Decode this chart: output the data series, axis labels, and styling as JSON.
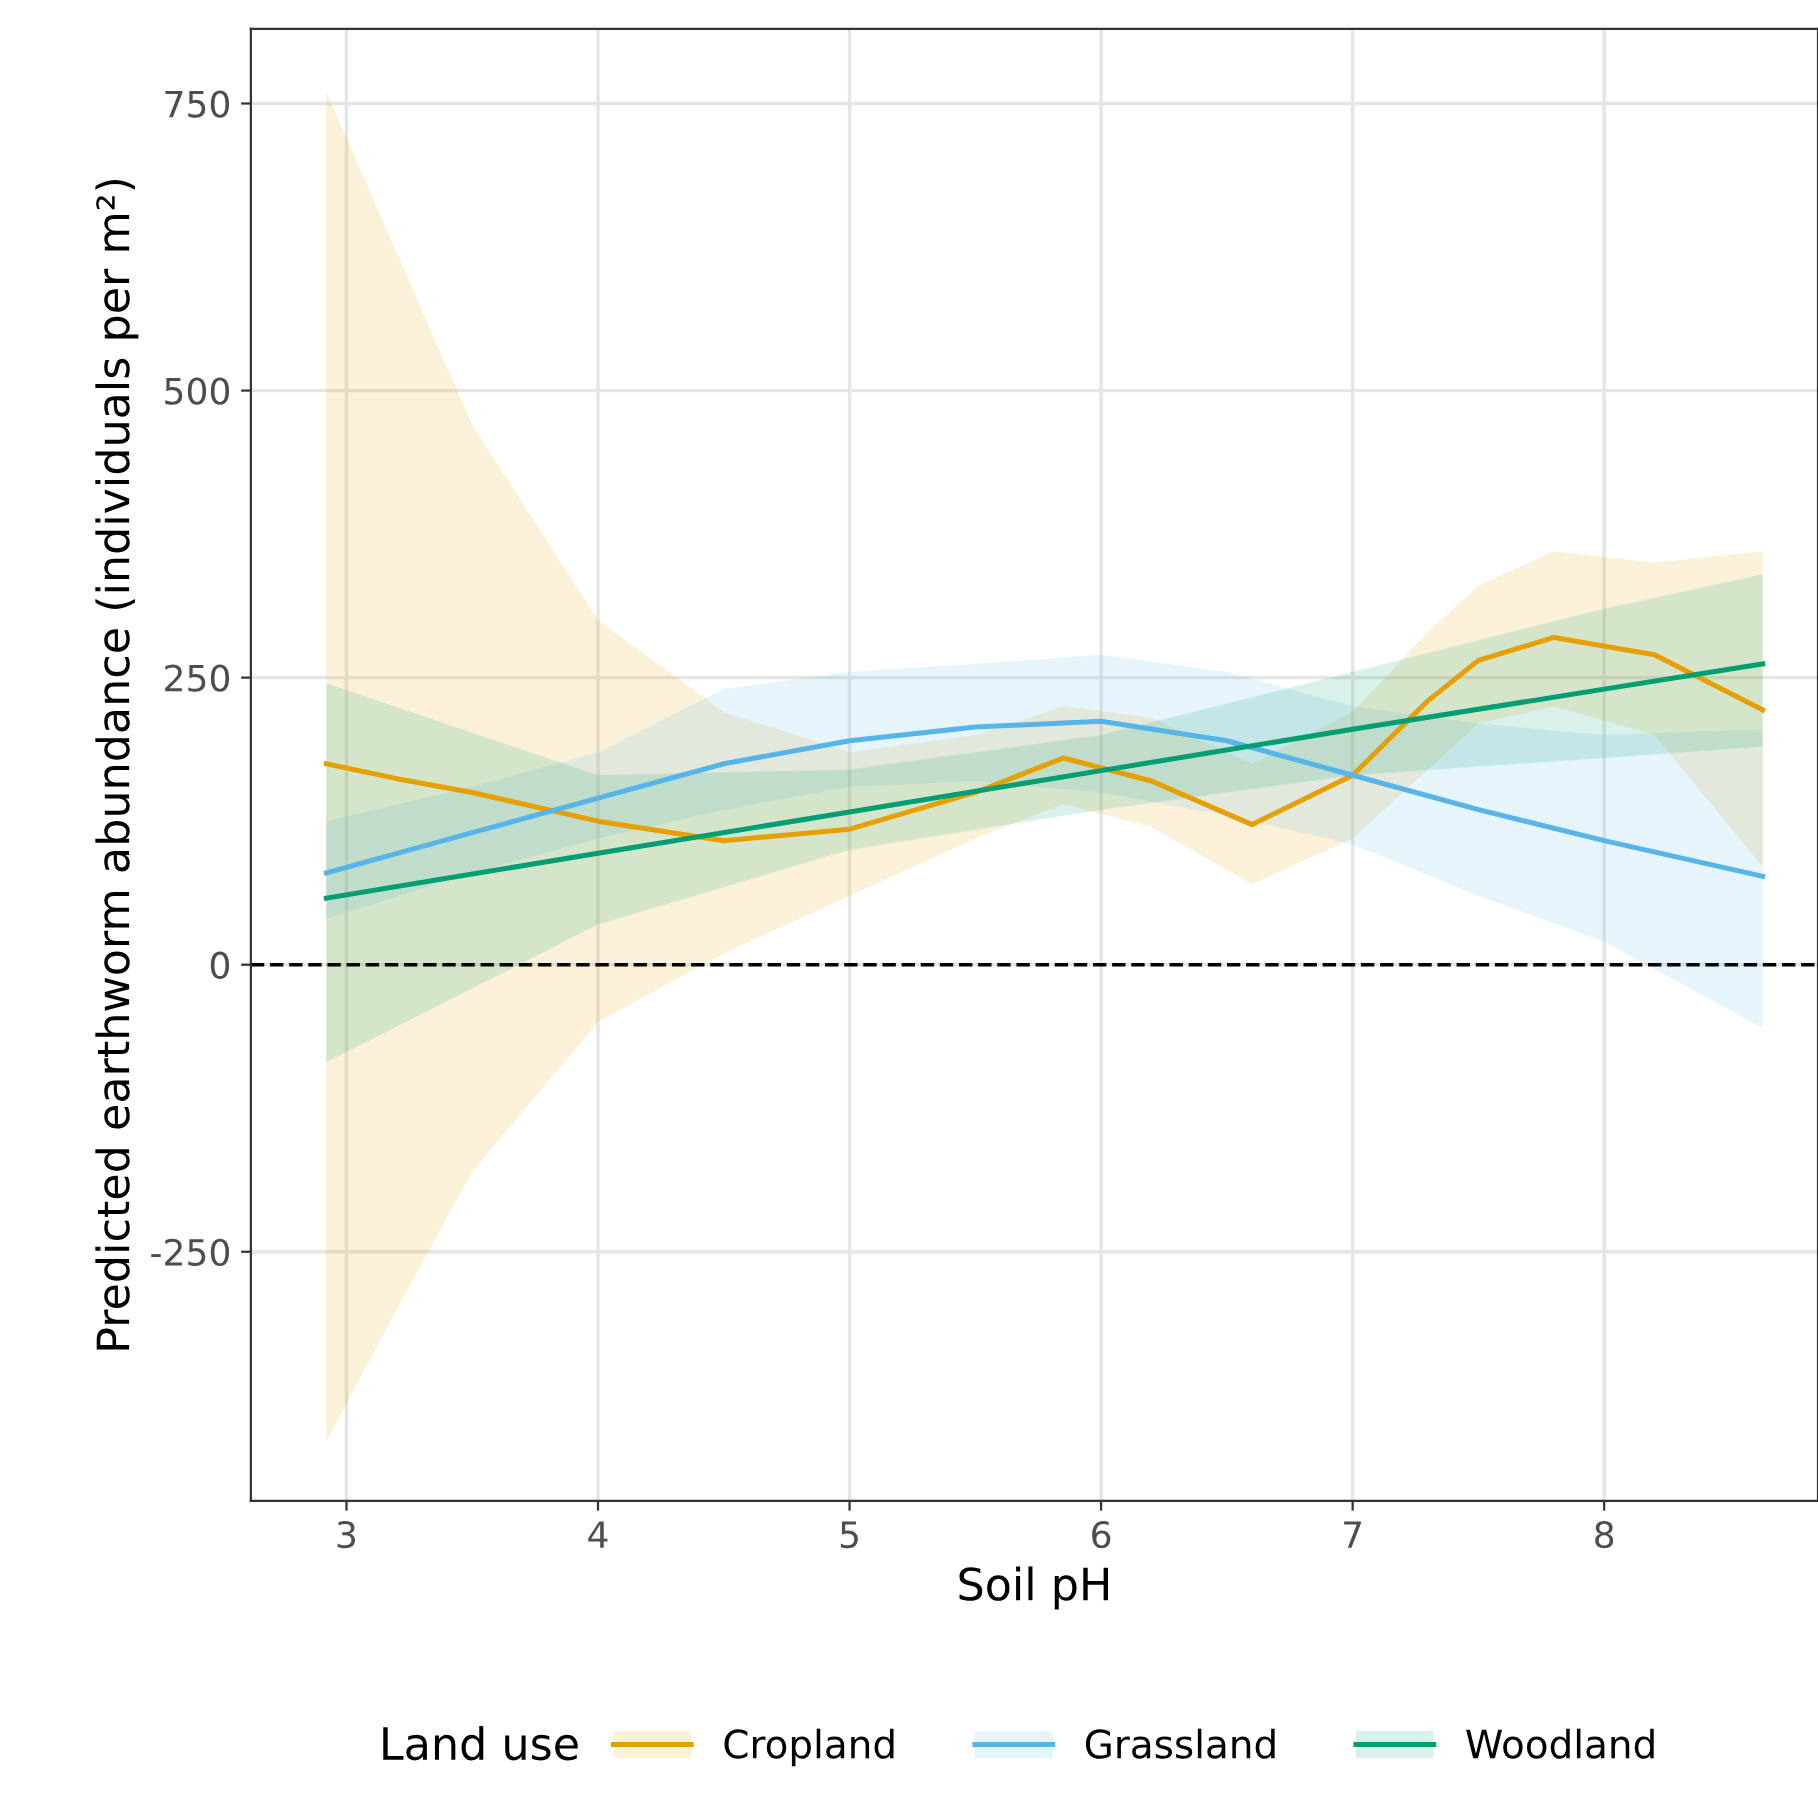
{
  "chart_data": {
    "type": "line",
    "xlabel": "Soil pH",
    "ylabel": "Predicted earthworm abundance (individuals per m²)",
    "legend_title": "Land use",
    "legend": "bottom",
    "grid": true,
    "line_style": "solid",
    "marker": "none",
    "xlim": [
      2.62,
      8.85
    ],
    "ylim": [
      -467,
      815
    ],
    "xticks": [
      3,
      4,
      5,
      6,
      7,
      8
    ],
    "yticks": [
      -250,
      0,
      250,
      500,
      750
    ],
    "ref_lines": [
      {
        "axis": "y",
        "value": 0,
        "color": "#000000",
        "line_style": "dashed"
      }
    ],
    "series": [
      {
        "name": "Cropland",
        "color": "#e69f00",
        "x": [
          2.92,
          3.2,
          3.5,
          4.0,
          4.5,
          5.0,
          5.5,
          5.85,
          6.2,
          6.6,
          7.0,
          7.3,
          7.5,
          7.8,
          8.2,
          8.63
        ],
        "values": [
          175,
          162,
          150,
          125,
          108,
          118,
          150,
          180,
          160,
          122,
          165,
          230,
          265,
          285,
          270,
          222
        ],
        "lower": [
          -415,
          -300,
          -180,
          -50,
          10,
          60,
          110,
          140,
          120,
          70,
          110,
          170,
          210,
          225,
          200,
          85
        ],
        "upper": [
          760,
          620,
          470,
          300,
          220,
          185,
          200,
          225,
          215,
          175,
          220,
          290,
          330,
          360,
          350,
          360
        ]
      },
      {
        "name": "Grassland",
        "color": "#56b4e9",
        "x": [
          2.92,
          3.5,
          4.0,
          4.5,
          5.0,
          5.5,
          6.0,
          6.5,
          7.0,
          7.5,
          8.0,
          8.63
        ],
        "values": [
          80,
          115,
          145,
          175,
          195,
          207,
          212,
          195,
          165,
          135,
          108,
          77
        ],
        "lower": [
          40,
          80,
          110,
          135,
          155,
          160,
          150,
          130,
          105,
          60,
          20,
          -55
        ],
        "upper": [
          125,
          155,
          185,
          240,
          255,
          262,
          270,
          255,
          225,
          210,
          200,
          205
        ]
      },
      {
        "name": "Woodland",
        "color": "#009e73",
        "x": [
          2.92,
          4.0,
          5.0,
          6.0,
          7.0,
          8.0,
          8.63
        ],
        "values": [
          58,
          97,
          133,
          169,
          205,
          240,
          262
        ],
        "lower": [
          -85,
          35,
          100,
          135,
          165,
          180,
          190
        ],
        "upper": [
          245,
          165,
          170,
          200,
          255,
          310,
          340
        ]
      }
    ]
  }
}
